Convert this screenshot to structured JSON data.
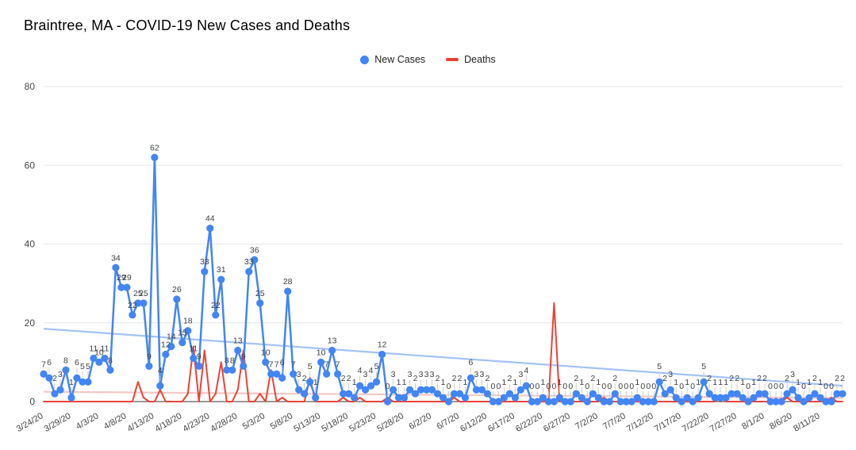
{
  "header": {
    "title": "Braintree, MA - COVID-19 New Cases and Deaths"
  },
  "legend": {
    "new_cases_label": "New Cases",
    "deaths_label": "Deaths"
  },
  "colors": {
    "new_cases": "#4285F4",
    "deaths": "#EA4335",
    "cases_trendline": "#A4C2F4",
    "deaths_trendline": "#F4C7C3",
    "gridline": "#e6e6e6",
    "axis_line": "#333333",
    "axis_text": "#444444",
    "point_label": "#3c4043",
    "background": "#ffffff"
  },
  "chart_data": {
    "type": "line",
    "title": "Braintree, MA - COVID-19 New Cases and Deaths",
    "ylim": [
      0,
      80
    ],
    "yticks": [
      0,
      20,
      40,
      60,
      80
    ],
    "xtick_every": 5,
    "grid": "horizontal-only",
    "legend_position": "top-center",
    "dates": [
      "3/24/20",
      "3/25/20",
      "3/26/20",
      "3/27/20",
      "3/28/20",
      "3/29/20",
      "3/30/20",
      "3/31/20",
      "4/1/20",
      "4/2/20",
      "4/3/20",
      "4/4/20",
      "4/5/20",
      "4/6/20",
      "4/7/20",
      "4/8/20",
      "4/9/20",
      "4/10/20",
      "4/11/20",
      "4/12/20",
      "4/13/20",
      "4/14/20",
      "4/15/20",
      "4/16/20",
      "4/17/20",
      "4/18/20",
      "4/19/20",
      "4/20/20",
      "4/21/20",
      "4/22/20",
      "4/23/20",
      "4/24/20",
      "4/25/20",
      "4/26/20",
      "4/27/20",
      "4/28/20",
      "4/29/20",
      "4/30/20",
      "5/1/20",
      "5/2/20",
      "5/3/20",
      "5/4/20",
      "5/5/20",
      "5/6/20",
      "5/7/20",
      "5/8/20",
      "5/9/20",
      "5/10/20",
      "5/11/20",
      "5/12/20",
      "5/13/20",
      "5/14/20",
      "5/15/20",
      "5/16/20",
      "5/17/20",
      "5/18/20",
      "5/19/20",
      "5/20/20",
      "5/21/20",
      "5/22/20",
      "5/23/20",
      "5/24/20",
      "5/25/20",
      "5/26/20",
      "5/27/20",
      "5/28/20",
      "5/29/20",
      "5/30/20",
      "5/31/20",
      "6/1/20",
      "6/2/20",
      "6/3/20",
      "6/4/20",
      "6/5/20",
      "6/6/20",
      "6/7/20",
      "6/8/20",
      "6/9/20",
      "6/10/20",
      "6/11/20",
      "6/12/20",
      "6/13/20",
      "6/14/20",
      "6/15/20",
      "6/16/20",
      "6/17/20",
      "6/18/20",
      "6/19/20",
      "6/20/20",
      "6/21/20",
      "6/22/20",
      "6/23/20",
      "6/24/20",
      "6/25/20",
      "6/26/20",
      "6/27/20",
      "6/28/20",
      "6/29/20",
      "6/30/20",
      "7/1/20",
      "7/2/20",
      "7/3/20",
      "7/4/20",
      "7/5/20",
      "7/6/20",
      "7/7/20",
      "7/8/20",
      "7/9/20",
      "7/10/20",
      "7/11/20",
      "7/12/20",
      "7/13/20",
      "7/14/20",
      "7/15/20",
      "7/16/20",
      "7/17/20",
      "7/18/20",
      "7/19/20",
      "7/20/20",
      "7/21/20",
      "7/22/20",
      "7/23/20",
      "7/24/20",
      "7/25/20",
      "7/26/20",
      "7/27/20",
      "7/28/20",
      "7/29/20",
      "7/30/20",
      "7/31/20",
      "8/1/20",
      "8/2/20",
      "8/3/20",
      "8/4/20",
      "8/5/20",
      "8/6/20",
      "8/7/20",
      "8/8/20",
      "8/9/20",
      "8/10/20",
      "8/11/20",
      "8/12/20",
      "8/13/20",
      "8/14/20",
      "8/15/20"
    ],
    "series": [
      {
        "name": "New Cases",
        "color": "#4285F4",
        "markers": true,
        "values": [
          7,
          6,
          2,
          3,
          8,
          1,
          6,
          5,
          5,
          11,
          10,
          11,
          8,
          34,
          29,
          29,
          22,
          25,
          25,
          9,
          62,
          4,
          12,
          14,
          26,
          15,
          18,
          11,
          9,
          33,
          44,
          22,
          31,
          8,
          8,
          13,
          9,
          33,
          36,
          25,
          10,
          7,
          7,
          6,
          28,
          7,
          3,
          2,
          5,
          1,
          10,
          7,
          13,
          7,
          2,
          2,
          1,
          4,
          3,
          4,
          5,
          12,
          0,
          3,
          1,
          1,
          3,
          2,
          3,
          3,
          3,
          2,
          1,
          0,
          2,
          2,
          1,
          6,
          3,
          3,
          2,
          0,
          0,
          1,
          2,
          1,
          3,
          4,
          0,
          0,
          1,
          0,
          0,
          1,
          0,
          0,
          2,
          1,
          0,
          2,
          1,
          0,
          0,
          2,
          0,
          0,
          0,
          1,
          0,
          0,
          0,
          5,
          2,
          3,
          1,
          0,
          1,
          0,
          1,
          5,
          2,
          1,
          1,
          1,
          2,
          2,
          1,
          0,
          1,
          2,
          2,
          0,
          0,
          0,
          2,
          3,
          1,
          0,
          1,
          2,
          1,
          0,
          0,
          2,
          2
        ]
      },
      {
        "name": "Deaths",
        "color": "#EA4335",
        "markers": false,
        "values": [
          0,
          0,
          0,
          0,
          0,
          0,
          0,
          0,
          0,
          0,
          0,
          0,
          0,
          0,
          0,
          0,
          0,
          5,
          1,
          0,
          0,
          3,
          0,
          0,
          0,
          0,
          2,
          14,
          0,
          13,
          0,
          2,
          10,
          0,
          0,
          3,
          13,
          0,
          0,
          2,
          0,
          8,
          0,
          1,
          0,
          0,
          0,
          0,
          6,
          0,
          0,
          0,
          0,
          0,
          1,
          0,
          0,
          1,
          0,
          0,
          0,
          0,
          1,
          0,
          0,
          0,
          0,
          0,
          0,
          0,
          0,
          0,
          0,
          0,
          1,
          0,
          0,
          0,
          0,
          0,
          0,
          0,
          0,
          0,
          0,
          0,
          0,
          0,
          0,
          0,
          0,
          0,
          25,
          0,
          0,
          0,
          0,
          0,
          0,
          0,
          0,
          1,
          0,
          0,
          0,
          0,
          0,
          0,
          0,
          0,
          0,
          0,
          0,
          0,
          0,
          0,
          0,
          0,
          0,
          0,
          0,
          0,
          1,
          0,
          0,
          0,
          0,
          0,
          0,
          0,
          0,
          0,
          0,
          0,
          1,
          0,
          0,
          0,
          0,
          0,
          0,
          0,
          1,
          0,
          0
        ]
      }
    ],
    "trendlines": [
      {
        "series": "New Cases",
        "color": "#A4C2F4",
        "start": 18.5,
        "end": 4
      },
      {
        "series": "Deaths",
        "color": "#F4C7C3",
        "start": 2.5,
        "end": 0.9
      }
    ]
  }
}
